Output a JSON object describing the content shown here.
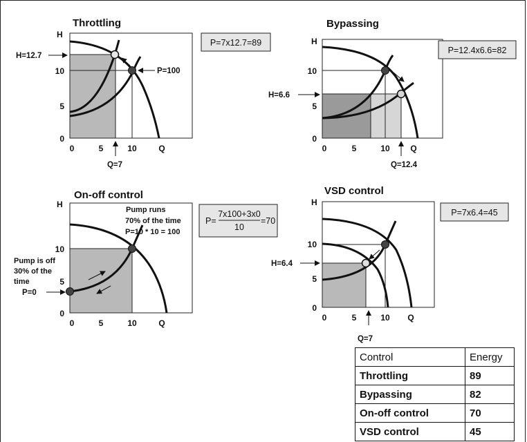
{
  "panels": {
    "throttling": {
      "title": "Throttling",
      "box": "P=7x12.7=89",
      "h_label": "H=12.7",
      "q_label": "",
      "p_label": "P=100"
    },
    "bypassing": {
      "title": "Bypassing",
      "box": "P=12.4x6.6=82",
      "h_label": "H=6.6",
      "q_label": "Q=12.4"
    },
    "onoff": {
      "title": "On-off control",
      "box_prefix": "P=",
      "box_num": "7x100+3x0",
      "box_den": "10",
      "box_suffix": "=70",
      "runs": [
        "Pump runs",
        "70% of the time",
        "P=10 * 10 = 100"
      ],
      "off": [
        "Pump is off",
        "30% of the",
        "time"
      ],
      "p0": "P=0"
    },
    "vsd": {
      "title": "VSD control",
      "box": "P=7x6.4=45",
      "h_label": "H=6.4",
      "q_label": "Q=7"
    }
  },
  "axes": {
    "h": "H",
    "q": "Q",
    "y_ticks": [
      "0",
      "5",
      "10"
    ],
    "x_ticks": [
      "0",
      "5",
      "10"
    ]
  },
  "throttling_q": "Q=7",
  "table": {
    "headers": [
      "Control",
      "Energy"
    ],
    "rows": [
      [
        "Throttling",
        "89"
      ],
      [
        "Bypassing",
        "82"
      ],
      [
        "On-off control",
        "70"
      ],
      [
        "VSD control",
        "45"
      ]
    ]
  },
  "chart_data": [
    {
      "type": "line",
      "title": "Throttling",
      "xlabel": "Q",
      "ylabel": "H",
      "operating_point": [
        7,
        12.7
      ],
      "energy": 89
    },
    {
      "type": "line",
      "title": "Bypassing",
      "xlabel": "Q",
      "ylabel": "H",
      "operating_point": [
        12.4,
        6.6
      ],
      "energy": 82
    },
    {
      "type": "line",
      "title": "On-off control",
      "xlabel": "Q",
      "ylabel": "H",
      "operating_point": [
        10,
        10
      ],
      "energy": 70
    },
    {
      "type": "line",
      "title": "VSD control",
      "xlabel": "Q",
      "ylabel": "H",
      "operating_point": [
        7,
        6.4
      ],
      "energy": 45
    }
  ]
}
